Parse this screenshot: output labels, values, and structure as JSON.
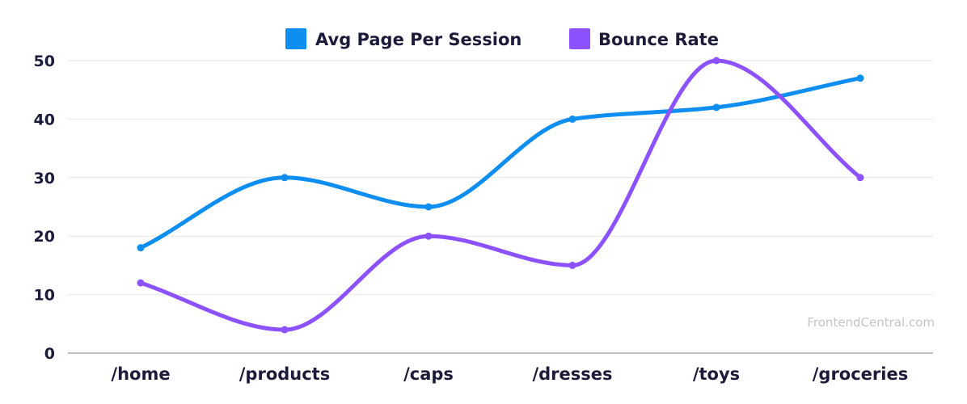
{
  "chart_data": {
    "type": "line",
    "categories": [
      "/home",
      "/products",
      "/caps",
      "/dresses",
      "/toys",
      "/groceries"
    ],
    "series": [
      {
        "name": "Avg Page Per Session",
        "color": "#0d8ef0",
        "values": [
          18,
          30,
          25,
          40,
          42,
          47
        ]
      },
      {
        "name": "Bounce Rate",
        "color": "#8c52ff",
        "values": [
          12,
          4,
          20,
          15,
          50,
          30
        ]
      }
    ],
    "ylim": [
      0,
      50
    ],
    "yticks": [
      "0",
      "10",
      "20",
      "30",
      "40",
      "50"
    ],
    "grid": true,
    "smooth": true,
    "legend_position": "top"
  },
  "watermark": "FrontendCentral.com"
}
